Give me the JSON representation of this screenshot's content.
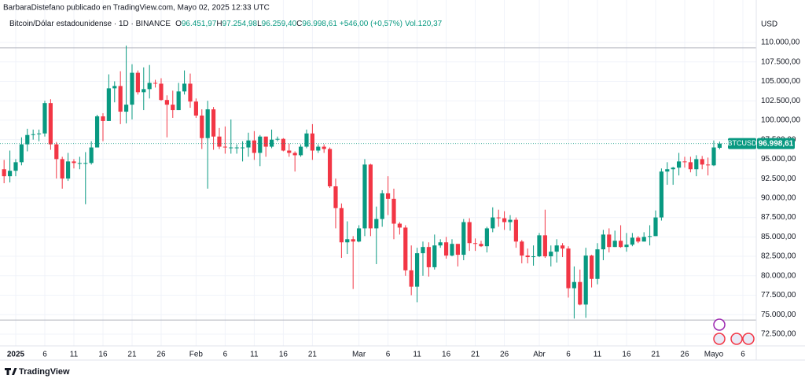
{
  "chart_data": {
    "type": "candlestick",
    "attribution": "BarbaraDistefano publicado en TradingView.com, Mayo 02, 2025 12:33 UTC",
    "title": "Bitcoin/Dólar estadounidense · 1D · BINANCE",
    "ohlc_legend": [
      {
        "key": "O",
        "value": "96.451,97"
      },
      {
        "key": "H",
        "value": "97.254,98"
      },
      {
        "key": "L",
        "value": "96.259,40"
      },
      {
        "key": "C",
        "value": "96.998,61"
      }
    ],
    "change": "+546,00 (+0,57%)",
    "volume": "Vol.120,37",
    "currency": "USD",
    "brand": "TradingView",
    "last_price": {
      "symbol": "BTCUSD",
      "label": "96.998,61"
    },
    "up_color": "#089981",
    "down_color": "#f23645",
    "grid": true,
    "horizontal_lines": [
      109300,
      74300
    ],
    "xlim": [
      -2.7,
      127.3
    ],
    "ylim": [
      70983,
      115458
    ],
    "xticks": [
      {
        "value": 0,
        "label": "2025"
      },
      {
        "value": 5,
        "label": "6"
      },
      {
        "value": 10,
        "label": "11"
      },
      {
        "value": 15,
        "label": "16"
      },
      {
        "value": 20,
        "label": "21"
      },
      {
        "value": 25,
        "label": "26"
      },
      {
        "value": 31,
        "label": "Feb"
      },
      {
        "value": 36,
        "label": "6"
      },
      {
        "value": 41,
        "label": "11"
      },
      {
        "value": 46,
        "label": "16"
      },
      {
        "value": 51,
        "label": "21"
      },
      {
        "value": 59,
        "label": "Mar"
      },
      {
        "value": 64,
        "label": "6"
      },
      {
        "value": 69,
        "label": "11"
      },
      {
        "value": 74,
        "label": "16"
      },
      {
        "value": 79,
        "label": "21"
      },
      {
        "value": 84,
        "label": "26"
      },
      {
        "value": 90,
        "label": "Abr"
      },
      {
        "value": 95,
        "label": "6"
      },
      {
        "value": 100,
        "label": "11"
      },
      {
        "value": 105,
        "label": "16"
      },
      {
        "value": 110,
        "label": "21"
      },
      {
        "value": 115,
        "label": "26"
      },
      {
        "value": 120,
        "label": "Mayo"
      },
      {
        "value": 125,
        "label": "6"
      }
    ],
    "yticks": [
      {
        "value": 110000,
        "label": "110.000,00"
      },
      {
        "value": 107500,
        "label": "107.500,00"
      },
      {
        "value": 105000,
        "label": "105.000,00"
      },
      {
        "value": 102500,
        "label": "102.500,00"
      },
      {
        "value": 100000,
        "label": "100.000,00"
      },
      {
        "value": 97500,
        "label": "97.500,00"
      },
      {
        "value": 95000,
        "label": "95.000,00"
      },
      {
        "value": 92500,
        "label": "92.500,00"
      },
      {
        "value": 90000,
        "label": "90.000,00"
      },
      {
        "value": 87500,
        "label": "87.500,00"
      },
      {
        "value": 85000,
        "label": "85.000,00"
      },
      {
        "value": 82500,
        "label": "82.500,00"
      },
      {
        "value": 80000,
        "label": "80.000,00"
      },
      {
        "value": 77500,
        "label": "77.500,00"
      },
      {
        "value": 75000,
        "label": "75.000,00"
      },
      {
        "value": 72500,
        "label": "72.500,00"
      }
    ],
    "x": [
      -2,
      -1,
      0,
      1,
      2,
      3,
      4,
      5,
      6,
      7,
      8,
      9,
      10,
      11,
      12,
      13,
      14,
      15,
      16,
      17,
      18,
      19,
      20,
      21,
      22,
      23,
      24,
      25,
      26,
      27,
      28,
      29,
      30,
      31,
      32,
      33,
      34,
      35,
      36,
      37,
      38,
      39,
      40,
      41,
      42,
      43,
      44,
      45,
      46,
      47,
      48,
      49,
      50,
      51,
      52,
      53,
      54,
      55,
      56,
      57,
      58,
      59,
      60,
      61,
      62,
      63,
      64,
      65,
      66,
      67,
      68,
      69,
      70,
      71,
      72,
      73,
      74,
      75,
      76,
      77,
      78,
      79,
      80,
      81,
      82,
      83,
      84,
      85,
      86,
      87,
      88,
      89,
      90,
      91,
      92,
      93,
      94,
      95,
      96,
      97,
      98,
      99,
      100,
      101,
      102,
      103,
      104,
      105,
      106,
      107,
      108,
      109,
      110,
      111,
      112,
      113,
      114,
      115,
      116,
      117,
      118,
      119,
      120,
      121
    ],
    "open": [
      93700,
      92800,
      93500,
      94600,
      96900,
      98100,
      98200,
      98300,
      102200,
      96900,
      95000,
      92500,
      94700,
      94500,
      94500,
      94500,
      96500,
      100500,
      99900,
      104100,
      104400,
      101100,
      102000,
      106100,
      103600,
      104000,
      104800,
      104700,
      102600,
      102000,
      101300,
      103700,
      104700,
      102400,
      100600,
      97700,
      101400,
      97900,
      96600,
      96500,
      96500,
      96500,
      96500,
      97400,
      95800,
      97900,
      96600,
      97500,
      97600,
      96100,
      95800,
      95500,
      96600,
      98300,
      96100,
      96600,
      96300,
      91500,
      88700,
      84300,
      84700,
      84400,
      86100,
      94300,
      86100,
      87300,
      90600,
      89900,
      86700,
      86200,
      80700,
      78600,
      82900,
      83700,
      81100,
      83900,
      84300,
      82600,
      84100,
      82700,
      86900,
      84200,
      84100,
      83800,
      86100,
      87500,
      87400,
      86900,
      87200,
      84400,
      82600,
      82400,
      82500,
      85200,
      82500,
      83100,
      83900,
      83500,
      78400,
      79200,
      76300,
      82600,
      79600,
      83400,
      85300,
      83700,
      84500,
      83700,
      84000,
      84900,
      84400,
      85000,
      85100,
      87500,
      93400,
      93700,
      93900,
      94700,
      94600,
      93700,
      95000,
      94300,
      94200,
      96451.97
    ],
    "high": [
      94900,
      96100,
      95000,
      97800,
      98900,
      98800,
      98800,
      102500,
      102700,
      97200,
      95300,
      95800,
      95000,
      95300,
      95900,
      97300,
      100700,
      100900,
      105900,
      105000,
      106300,
      109600,
      107200,
      106400,
      106800,
      107100,
      105200,
      105400,
      103200,
      103800,
      104800,
      106400,
      106000,
      102800,
      101400,
      102500,
      101700,
      99000,
      99200,
      100100,
      96900,
      97300,
      98400,
      98600,
      98100,
      97900,
      98800,
      97900,
      97700,
      97000,
      96000,
      96900,
      98800,
      99500,
      96900,
      96900,
      96500,
      92500,
      89300,
      87000,
      85100,
      86500,
      95000,
      94400,
      88900,
      91000,
      92800,
      91200,
      86900,
      86500,
      83900,
      83600,
      84400,
      84300,
      85300,
      84700,
      85000,
      84700,
      84100,
      87300,
      87400,
      84800,
      84500,
      86300,
      88800,
      88500,
      88300,
      87800,
      87500,
      84600,
      83500,
      83900,
      85500,
      88500,
      83900,
      84700,
      84200,
      83800,
      81200,
      80800,
      83600,
      82700,
      84200,
      85900,
      86100,
      85800,
      86500,
      85500,
      85500,
      85100,
      85600,
      86500,
      88400,
      93800,
      94600,
      94000,
      95800,
      95300,
      95300,
      95500,
      95400,
      95200,
      97400,
      97254.98
    ],
    "low": [
      91900,
      92000,
      92800,
      94200,
      96000,
      97500,
      97300,
      97900,
      96200,
      92500,
      91200,
      92200,
      93800,
      93700,
      89200,
      94300,
      96500,
      97300,
      99900,
      102300,
      99500,
      99600,
      100100,
      103300,
      101300,
      102800,
      104200,
      102500,
      97800,
      100300,
      101300,
      103300,
      101600,
      100300,
      96300,
      91200,
      96200,
      96300,
      95700,
      95700,
      95700,
      94700,
      95300,
      94900,
      94100,
      95300,
      96400,
      97300,
      96000,
      95300,
      93400,
      95300,
      96400,
      94900,
      95800,
      95800,
      91300,
      86100,
      82300,
      82800,
      78300,
      84300,
      85100,
      85100,
      81500,
      86300,
      87800,
      84700,
      85300,
      80000,
      77500,
      76600,
      80000,
      79900,
      80800,
      83600,
      82200,
      82500,
      81200,
      82000,
      83200,
      83200,
      83700,
      83000,
      85600,
      86300,
      85900,
      85800,
      83600,
      81600,
      81600,
      81300,
      82400,
      82300,
      81200,
      81700,
      82400,
      77200,
      74500,
      76200,
      74600,
      78500,
      78900,
      82000,
      83000,
      83700,
      83600,
      83100,
      83800,
      84200,
      84400,
      83900,
      85100,
      87100,
      91700,
      91700,
      92900,
      93900,
      93300,
      92800,
      93700,
      92900,
      94100,
      96259.4
    ],
    "close": [
      92800,
      93500,
      94600,
      96900,
      98100,
      98200,
      98300,
      102200,
      96900,
      95000,
      92500,
      94700,
      94500,
      94500,
      94500,
      96500,
      100500,
      99900,
      104100,
      104400,
      101100,
      102000,
      106100,
      103600,
      104000,
      104800,
      104700,
      102600,
      102000,
      101300,
      103700,
      104700,
      102400,
      100600,
      97700,
      101400,
      97900,
      96600,
      96500,
      96500,
      96500,
      96500,
      97400,
      95800,
      97900,
      96600,
      97500,
      97600,
      96100,
      95800,
      95500,
      96600,
      98300,
      96100,
      96600,
      96300,
      91500,
      88700,
      84300,
      84700,
      84400,
      86100,
      94300,
      86100,
      87300,
      90600,
      89900,
      86700,
      86200,
      80700,
      78600,
      82900,
      83700,
      81100,
      83900,
      84300,
      82600,
      84100,
      82700,
      86900,
      84200,
      84100,
      83800,
      86100,
      87500,
      87400,
      86900,
      87200,
      84400,
      82600,
      82400,
      82500,
      85200,
      82500,
      83100,
      83900,
      83500,
      78400,
      79200,
      76300,
      82600,
      79600,
      83400,
      85300,
      83700,
      84500,
      83700,
      84000,
      84900,
      84400,
      85000,
      85100,
      87500,
      93400,
      93700,
      93900,
      94700,
      94600,
      93700,
      95000,
      94300,
      94200,
      96500,
      96998.61
    ]
  }
}
